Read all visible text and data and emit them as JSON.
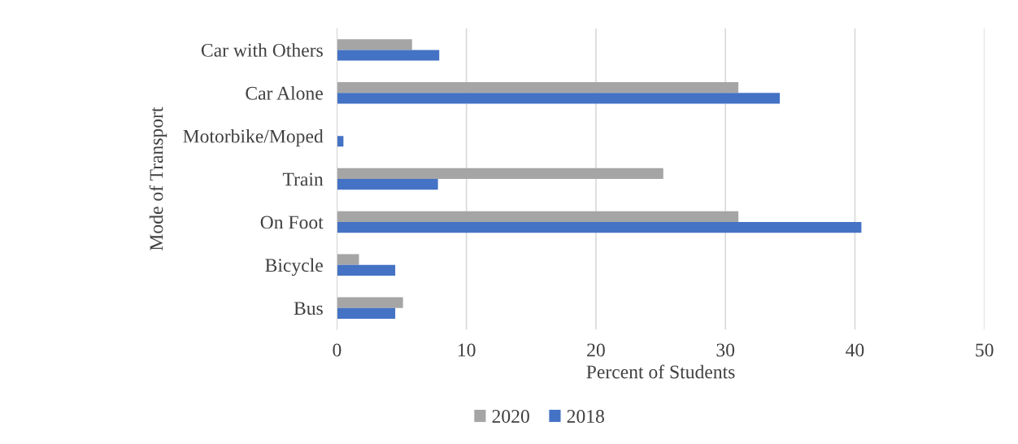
{
  "chart_data": {
    "type": "bar",
    "orientation": "horizontal",
    "categories": [
      "Car with Others",
      "Car Alone",
      "Motorbike/Moped",
      "Train",
      "On Foot",
      "Bicycle",
      "Bus"
    ],
    "series": [
      {
        "name": "2020",
        "color": "#a5a5a5",
        "values": [
          5.8,
          31,
          0,
          25.2,
          31,
          1.7,
          5.1
        ]
      },
      {
        "name": "2018",
        "color": "#4472c4",
        "values": [
          7.9,
          34.2,
          0.5,
          7.8,
          40.5,
          4.5,
          4.5
        ]
      }
    ],
    "xlabel": "Percent of Students",
    "ylabel": "Mode of Transport",
    "xlim": [
      0,
      50
    ],
    "xticks": [
      0,
      10,
      20,
      30,
      40,
      50
    ],
    "grid": "x",
    "legend": "bottom"
  }
}
